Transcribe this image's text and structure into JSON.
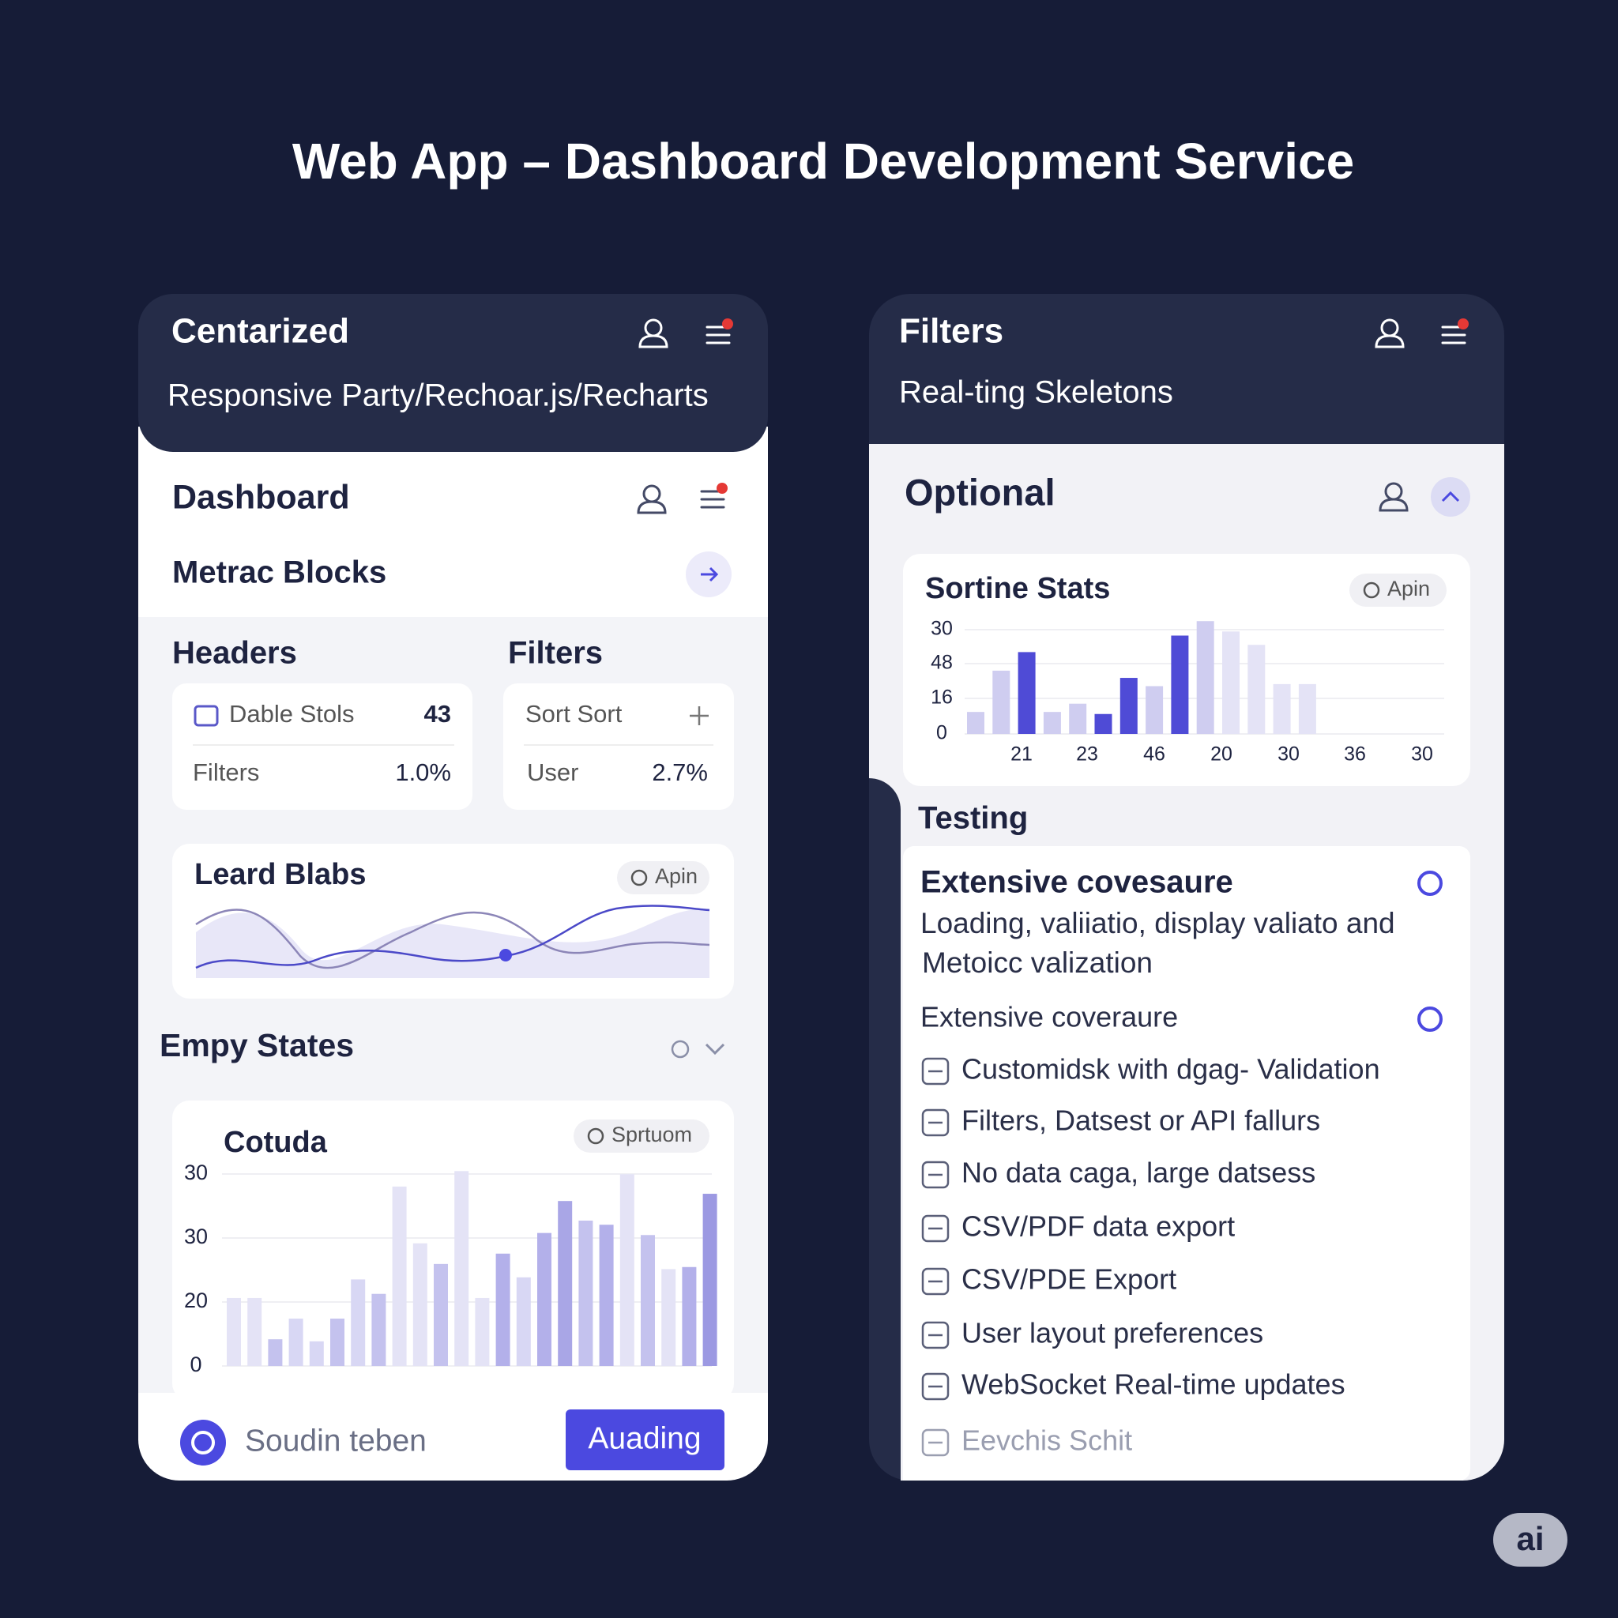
{
  "header": {
    "title": "Web App – Dashboard Development Service"
  },
  "left_panel": {
    "title": "Centarized",
    "subtitle": "Responsive Party/Rechoar.js/Recharts",
    "section": "Dashboard",
    "subsection": "Metrac Blocks",
    "headers": {
      "title": "Headers",
      "rows": [
        {
          "label": "Dable Stols",
          "value": "43"
        },
        {
          "label": "Filters",
          "value": "1.0%"
        }
      ]
    },
    "filters": {
      "title": "Filters",
      "rows": [
        {
          "label": "Sort Sort"
        },
        {
          "label": "User",
          "value": "2.7%"
        }
      ]
    },
    "line_card": {
      "title": "Leard Blabs",
      "badge": "Apin"
    },
    "empty_states": {
      "title": "Empy States"
    },
    "bar_card": {
      "title": "Cotuda",
      "badge": "Sprtuom",
      "y_labels": [
        "30",
        "30",
        "20",
        "0"
      ]
    },
    "footer": {
      "label": "Soudin teben",
      "button": "Auading"
    }
  },
  "right_panel": {
    "title": "Filters",
    "subtitle": "Real-ting Skeletons",
    "section": "Optional",
    "stats_card": {
      "title": "Sortine Stats",
      "badge": "Apin",
      "y_labels": [
        "30",
        "48",
        "16",
        "0"
      ],
      "x_labels": [
        "21",
        "23",
        "46",
        "20",
        "30",
        "36",
        "30"
      ]
    },
    "testing": {
      "title": "Testing",
      "feature": {
        "title": "Extensive covesaure",
        "lines": [
          "Loading, valiiatio, display valiato and",
          "Metoicc valization"
        ]
      },
      "subtitle": "Extensive coveraure",
      "items": [
        "Customidsk with dgag- Validation",
        "Filters, Datsest or API fallurs",
        "No data caga, large datsess",
        "CSV/PDF data export",
        "CSV/PDE Export",
        "User layout preferences",
        "WebSocket Real-time updates",
        "Eevchis Schit"
      ]
    }
  },
  "badge": "ai"
}
